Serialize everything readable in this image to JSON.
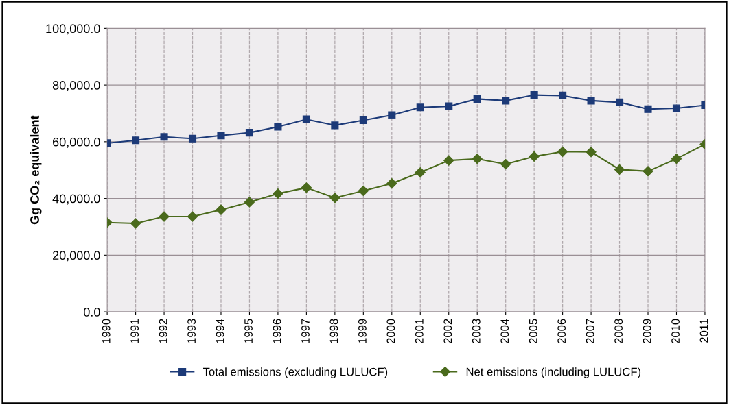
{
  "chart_data": {
    "type": "line",
    "ylabel": "Gg CO₂ equivalent",
    "categories": [
      "1990",
      "1991",
      "1992",
      "1993",
      "1994",
      "1995",
      "1996",
      "1997",
      "1998",
      "1999",
      "2000",
      "2001",
      "2002",
      "2003",
      "2004",
      "2005",
      "2006",
      "2007",
      "2008",
      "2009",
      "2010",
      "2011"
    ],
    "series": [
      {
        "name": "Total emissions (excluding LULUCF)",
        "color": "#1c3a78",
        "marker": "square",
        "values": [
          59500,
          60500,
          61700,
          61100,
          62200,
          63200,
          65300,
          67900,
          65800,
          67600,
          69400,
          72100,
          72500,
          75100,
          74500,
          76500,
          76300,
          74500,
          73900,
          71500,
          71800,
          72900
        ]
      },
      {
        "name": "Net emissions (including LULUCF)",
        "color": "#4a6a1c",
        "marker": "diamond",
        "values": [
          31500,
          31200,
          33600,
          33600,
          36000,
          38700,
          41700,
          43800,
          40200,
          42700,
          45300,
          49200,
          53400,
          54000,
          52100,
          54800,
          56500,
          56400,
          50200,
          49600,
          54000,
          59100
        ]
      }
    ],
    "ylim": [
      0,
      100000
    ],
    "yticks": [
      {
        "value": 0,
        "label": "0.0"
      },
      {
        "value": 20000,
        "label": "20,000.0"
      },
      {
        "value": 40000,
        "label": "40,000.0"
      },
      {
        "value": 60000,
        "label": "60,000.0"
      },
      {
        "value": 80000,
        "label": "80,000.0"
      },
      {
        "value": 100000,
        "label": "100,000.0"
      }
    ],
    "grid": true,
    "legend": "bottom",
    "line_style": "solid"
  }
}
